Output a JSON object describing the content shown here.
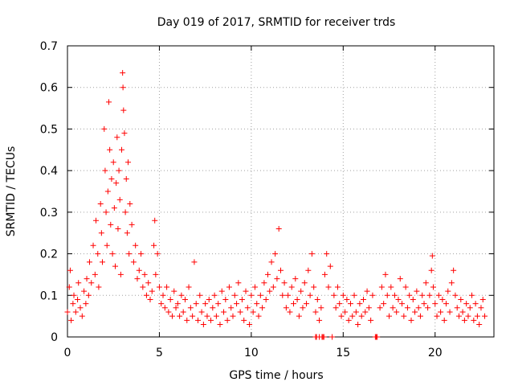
{
  "chart_data": {
    "type": "scatter",
    "title": "Day 019 of 2017, SRMTID for receiver trds",
    "xlabel": "GPS time / hours",
    "ylabel": "SRMTID / TECUs",
    "xlim": [
      0,
      23.2
    ],
    "ylim": [
      0,
      0.7
    ],
    "xticks": [
      0,
      5,
      10,
      15,
      20
    ],
    "xtick_labels": [
      "0",
      "5",
      "10",
      "15",
      "20"
    ],
    "yticks": [
      0,
      0.1,
      0.2,
      0.3,
      0.4,
      0.5,
      0.6,
      0.7
    ],
    "ytick_labels": [
      "0",
      "0.1",
      "0.2",
      "0.3",
      "0.4",
      "0.5",
      "0.6",
      "0.7"
    ],
    "grid": true,
    "marker": "plus",
    "color": "#ff0000",
    "series": [
      {
        "name": "SRMTID",
        "points": [
          [
            0.0,
            0.06
          ],
          [
            0.1,
            0.12
          ],
          [
            0.15,
            0.16
          ],
          [
            0.2,
            0.04
          ],
          [
            0.3,
            0.08
          ],
          [
            0.35,
            0.1
          ],
          [
            0.45,
            0.06
          ],
          [
            0.55,
            0.09
          ],
          [
            0.6,
            0.13
          ],
          [
            0.7,
            0.07
          ],
          [
            0.8,
            0.05
          ],
          [
            0.9,
            0.11
          ],
          [
            1.0,
            0.08
          ],
          [
            1.05,
            0.14
          ],
          [
            1.15,
            0.1
          ],
          [
            1.2,
            0.18
          ],
          [
            1.3,
            0.13
          ],
          [
            1.4,
            0.22
          ],
          [
            1.5,
            0.15
          ],
          [
            1.55,
            0.28
          ],
          [
            1.65,
            0.2
          ],
          [
            1.7,
            0.12
          ],
          [
            1.8,
            0.32
          ],
          [
            1.85,
            0.25
          ],
          [
            1.9,
            0.18
          ],
          [
            2.0,
            0.5
          ],
          [
            2.05,
            0.4
          ],
          [
            2.1,
            0.3
          ],
          [
            2.15,
            0.22
          ],
          [
            2.2,
            0.35
          ],
          [
            2.25,
            0.565
          ],
          [
            2.3,
            0.45
          ],
          [
            2.35,
            0.27
          ],
          [
            2.4,
            0.38
          ],
          [
            2.45,
            0.2
          ],
          [
            2.5,
            0.42
          ],
          [
            2.55,
            0.31
          ],
          [
            2.6,
            0.17
          ],
          [
            2.65,
            0.37
          ],
          [
            2.7,
            0.48
          ],
          [
            2.75,
            0.26
          ],
          [
            2.8,
            0.4
          ],
          [
            2.85,
            0.33
          ],
          [
            2.9,
            0.15
          ],
          [
            2.95,
            0.45
          ],
          [
            3.0,
            0.635
          ],
          [
            3.02,
            0.6
          ],
          [
            3.05,
            0.545
          ],
          [
            3.1,
            0.49
          ],
          [
            3.15,
            0.3
          ],
          [
            3.2,
            0.38
          ],
          [
            3.25,
            0.25
          ],
          [
            3.3,
            0.42
          ],
          [
            3.35,
            0.2
          ],
          [
            3.4,
            0.32
          ],
          [
            3.5,
            0.27
          ],
          [
            3.6,
            0.18
          ],
          [
            3.7,
            0.22
          ],
          [
            3.8,
            0.14
          ],
          [
            3.9,
            0.16
          ],
          [
            4.0,
            0.2
          ],
          [
            4.1,
            0.12
          ],
          [
            4.2,
            0.15
          ],
          [
            4.3,
            0.1
          ],
          [
            4.4,
            0.13
          ],
          [
            4.5,
            0.09
          ],
          [
            4.6,
            0.11
          ],
          [
            4.7,
            0.22
          ],
          [
            4.75,
            0.28
          ],
          [
            4.8,
            0.15
          ],
          [
            4.9,
            0.2
          ],
          [
            5.0,
            0.12
          ],
          [
            5.1,
            0.08
          ],
          [
            5.2,
            0.1
          ],
          [
            5.3,
            0.07
          ],
          [
            5.4,
            0.12
          ],
          [
            5.5,
            0.06
          ],
          [
            5.6,
            0.09
          ],
          [
            5.7,
            0.05
          ],
          [
            5.8,
            0.11
          ],
          [
            5.9,
            0.07
          ],
          [
            6.0,
            0.08
          ],
          [
            6.1,
            0.05
          ],
          [
            6.2,
            0.1
          ],
          [
            6.3,
            0.06
          ],
          [
            6.4,
            0.09
          ],
          [
            6.5,
            0.04
          ],
          [
            6.6,
            0.12
          ],
          [
            6.7,
            0.07
          ],
          [
            6.8,
            0.05
          ],
          [
            6.9,
            0.18
          ],
          [
            7.0,
            0.08
          ],
          [
            7.1,
            0.04
          ],
          [
            7.2,
            0.1
          ],
          [
            7.3,
            0.06
          ],
          [
            7.4,
            0.03
          ],
          [
            7.5,
            0.08
          ],
          [
            7.6,
            0.05
          ],
          [
            7.7,
            0.09
          ],
          [
            7.8,
            0.04
          ],
          [
            7.9,
            0.07
          ],
          [
            8.0,
            0.1
          ],
          [
            8.1,
            0.05
          ],
          [
            8.2,
            0.08
          ],
          [
            8.3,
            0.03
          ],
          [
            8.4,
            0.11
          ],
          [
            8.5,
            0.06
          ],
          [
            8.6,
            0.09
          ],
          [
            8.7,
            0.04
          ],
          [
            8.8,
            0.12
          ],
          [
            8.9,
            0.07
          ],
          [
            9.0,
            0.05
          ],
          [
            9.1,
            0.1
          ],
          [
            9.2,
            0.08
          ],
          [
            9.3,
            0.13
          ],
          [
            9.4,
            0.06
          ],
          [
            9.5,
            0.09
          ],
          [
            9.6,
            0.04
          ],
          [
            9.7,
            0.11
          ],
          [
            9.8,
            0.07
          ],
          [
            9.9,
            0.03
          ],
          [
            10.0,
            0.1
          ],
          [
            10.1,
            0.06
          ],
          [
            10.2,
            0.12
          ],
          [
            10.3,
            0.08
          ],
          [
            10.4,
            0.05
          ],
          [
            10.5,
            0.1
          ],
          [
            10.6,
            0.07
          ],
          [
            10.7,
            0.13
          ],
          [
            10.8,
            0.09
          ],
          [
            10.9,
            0.15
          ],
          [
            11.0,
            0.11
          ],
          [
            11.1,
            0.18
          ],
          [
            11.2,
            0.12
          ],
          [
            11.3,
            0.2
          ],
          [
            11.4,
            0.14
          ],
          [
            11.5,
            0.26
          ],
          [
            11.6,
            0.16
          ],
          [
            11.7,
            0.1
          ],
          [
            11.8,
            0.13
          ],
          [
            11.9,
            0.07
          ],
          [
            12.0,
            0.1
          ],
          [
            12.1,
            0.06
          ],
          [
            12.2,
            0.12
          ],
          [
            12.3,
            0.08
          ],
          [
            12.4,
            0.14
          ],
          [
            12.5,
            0.09
          ],
          [
            12.6,
            0.05
          ],
          [
            12.7,
            0.11
          ],
          [
            12.8,
            0.07
          ],
          [
            12.9,
            0.13
          ],
          [
            13.0,
            0.08
          ],
          [
            13.1,
            0.16
          ],
          [
            13.2,
            0.1
          ],
          [
            13.3,
            0.2
          ],
          [
            13.4,
            0.12
          ],
          [
            13.5,
            0.06
          ],
          [
            13.6,
            0.09
          ],
          [
            13.7,
            0.04
          ],
          [
            13.8,
            0.07
          ],
          [
            14.0,
            0.15
          ],
          [
            14.1,
            0.2
          ],
          [
            14.2,
            0.12
          ],
          [
            14.3,
            0.17
          ],
          [
            14.5,
            0.1
          ],
          [
            14.6,
            0.07
          ],
          [
            14.7,
            0.12
          ],
          [
            14.8,
            0.08
          ],
          [
            14.9,
            0.05
          ],
          [
            15.0,
            0.1
          ],
          [
            15.1,
            0.06
          ],
          [
            15.2,
            0.09
          ],
          [
            15.3,
            0.04
          ],
          [
            15.4,
            0.08
          ],
          [
            15.5,
            0.05
          ],
          [
            15.6,
            0.1
          ],
          [
            15.7,
            0.06
          ],
          [
            15.8,
            0.03
          ],
          [
            15.9,
            0.08
          ],
          [
            16.0,
            0.05
          ],
          [
            16.1,
            0.09
          ],
          [
            16.2,
            0.06
          ],
          [
            16.3,
            0.11
          ],
          [
            16.4,
            0.07
          ],
          [
            16.5,
            0.04
          ],
          [
            16.6,
            0.1
          ],
          [
            17.0,
            0.07
          ],
          [
            17.1,
            0.12
          ],
          [
            17.2,
            0.08
          ],
          [
            17.3,
            0.15
          ],
          [
            17.4,
            0.1
          ],
          [
            17.5,
            0.05
          ],
          [
            17.6,
            0.12
          ],
          [
            17.7,
            0.07
          ],
          [
            17.8,
            0.1
          ],
          [
            17.9,
            0.06
          ],
          [
            18.0,
            0.09
          ],
          [
            18.1,
            0.14
          ],
          [
            18.2,
            0.08
          ],
          [
            18.3,
            0.05
          ],
          [
            18.4,
            0.12
          ],
          [
            18.5,
            0.07
          ],
          [
            18.6,
            0.1
          ],
          [
            18.7,
            0.04
          ],
          [
            18.8,
            0.09
          ],
          [
            18.9,
            0.06
          ],
          [
            19.0,
            0.11
          ],
          [
            19.1,
            0.07
          ],
          [
            19.2,
            0.05
          ],
          [
            19.3,
            0.1
          ],
          [
            19.4,
            0.08
          ],
          [
            19.5,
            0.13
          ],
          [
            19.6,
            0.07
          ],
          [
            19.7,
            0.1
          ],
          [
            19.8,
            0.16
          ],
          [
            19.85,
            0.195
          ],
          [
            19.9,
            0.12
          ],
          [
            20.0,
            0.08
          ],
          [
            20.1,
            0.05
          ],
          [
            20.2,
            0.1
          ],
          [
            20.3,
            0.06
          ],
          [
            20.4,
            0.09
          ],
          [
            20.5,
            0.04
          ],
          [
            20.6,
            0.08
          ],
          [
            20.7,
            0.11
          ],
          [
            20.8,
            0.06
          ],
          [
            20.9,
            0.13
          ],
          [
            21.0,
            0.16
          ],
          [
            21.1,
            0.1
          ],
          [
            21.2,
            0.07
          ],
          [
            21.3,
            0.05
          ],
          [
            21.4,
            0.09
          ],
          [
            21.5,
            0.06
          ],
          [
            21.6,
            0.04
          ],
          [
            21.7,
            0.08
          ],
          [
            21.8,
            0.05
          ],
          [
            21.9,
            0.07
          ],
          [
            22.0,
            0.1
          ],
          [
            22.1,
            0.04
          ],
          [
            22.2,
            0.08
          ],
          [
            22.3,
            0.05
          ],
          [
            22.4,
            0.03
          ],
          [
            22.5,
            0.07
          ],
          [
            22.6,
            0.09
          ],
          [
            22.7,
            0.05
          ]
        ],
        "zero_points": [
          [
            13.5,
            0.0
          ],
          [
            13.55,
            0.0
          ],
          [
            13.7,
            0.0
          ],
          [
            13.85,
            0.0
          ],
          [
            13.9,
            0.0
          ],
          [
            13.95,
            0.0
          ],
          [
            14.4,
            0.0
          ],
          [
            16.75,
            0.0
          ],
          [
            16.8,
            0.0
          ],
          [
            16.85,
            0.0
          ]
        ]
      }
    ]
  }
}
